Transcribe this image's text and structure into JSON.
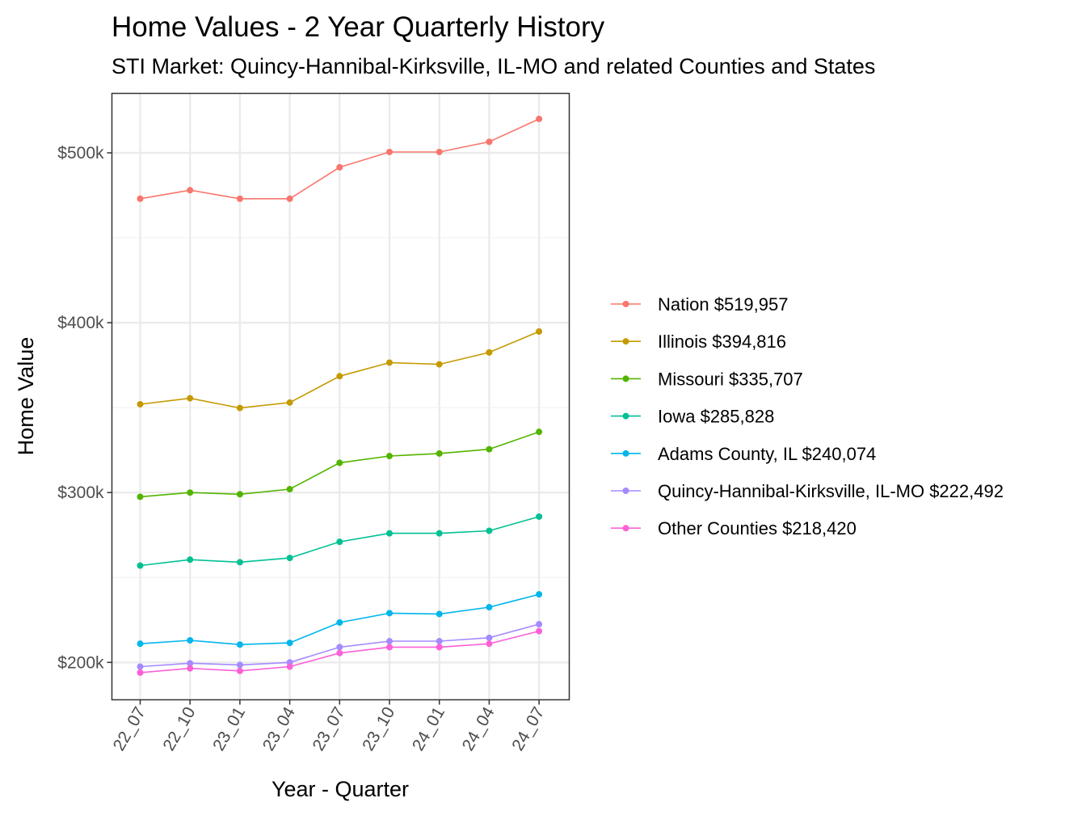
{
  "chart_data": {
    "type": "line",
    "title": "Home Values - 2 Year Quarterly History",
    "subtitle": "STI Market: Quincy-Hannibal-Kirksville, IL-MO and related Counties and States",
    "xlabel": "Year - Quarter",
    "ylabel": "Home Value",
    "categories": [
      "22_07",
      "22_10",
      "23_01",
      "23_04",
      "23_07",
      "23_10",
      "24_01",
      "24_04",
      "24_07"
    ],
    "ylim": [
      178000,
      535000
    ],
    "yticks": [
      200000,
      300000,
      400000,
      500000
    ],
    "ytick_labels": [
      "$200k",
      "$300k",
      "$400k",
      "$500k"
    ],
    "grid": true,
    "legend_position": "right",
    "series": [
      {
        "name": "Nation $519,957",
        "color": "#F8766D",
        "values": [
          473000,
          478000,
          473000,
          473000,
          491500,
          500500,
          500500,
          506500,
          519957
        ]
      },
      {
        "name": "Illinois $394,816",
        "color": "#C49A00",
        "values": [
          352000,
          355500,
          349800,
          353000,
          368500,
          376500,
          375500,
          382500,
          394816
        ]
      },
      {
        "name": "Missouri $335,707",
        "color": "#53B400",
        "values": [
          297500,
          300000,
          299000,
          302000,
          317500,
          321500,
          323000,
          325500,
          335707
        ]
      },
      {
        "name": "Iowa $285,828",
        "color": "#00C094",
        "values": [
          257000,
          260500,
          259000,
          261500,
          271000,
          276000,
          276000,
          277500,
          285828
        ]
      },
      {
        "name": "Adams County, IL $240,074",
        "color": "#00B6EB",
        "values": [
          211000,
          213000,
          210500,
          211500,
          223500,
          229000,
          228500,
          232500,
          240074
        ]
      },
      {
        "name": "Quincy-Hannibal-Kirksville, IL-MO $222,492",
        "color": "#A58AFF",
        "values": [
          197500,
          199500,
          198500,
          200000,
          209000,
          212500,
          212500,
          214500,
          222492
        ]
      },
      {
        "name": "Other Counties $218,420",
        "color": "#FB61D7",
        "values": [
          194000,
          196500,
          195000,
          197500,
          205500,
          209000,
          209000,
          211000,
          218420
        ]
      }
    ]
  }
}
